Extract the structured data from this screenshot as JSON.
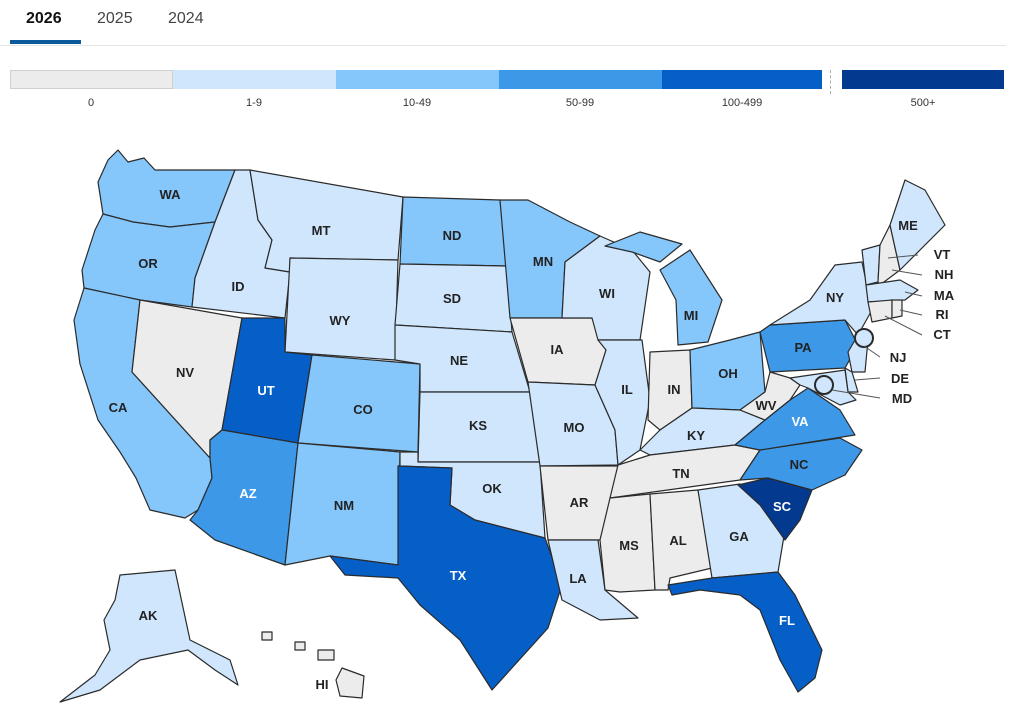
{
  "tabs": [
    {
      "label": "2026",
      "active": true
    },
    {
      "label": "2025",
      "active": false
    },
    {
      "label": "2024",
      "active": false
    }
  ],
  "legend": [
    {
      "label": "0",
      "color": "#ececec"
    },
    {
      "label": "1-9",
      "color": "#cfe6fd"
    },
    {
      "label": "10-49",
      "color": "#85c6fb"
    },
    {
      "label": "50-99",
      "color": "#3d98e8"
    },
    {
      "label": "100-499",
      "color": "#065fc6"
    },
    {
      "label": "500+",
      "color": "#03398f"
    }
  ],
  "states": [
    {
      "abbr": "WA",
      "category": "10-49"
    },
    {
      "abbr": "OR",
      "category": "10-49"
    },
    {
      "abbr": "CA",
      "category": "10-49"
    },
    {
      "abbr": "ID",
      "category": "1-9"
    },
    {
      "abbr": "NV",
      "category": "0"
    },
    {
      "abbr": "MT",
      "category": "1-9"
    },
    {
      "abbr": "WY",
      "category": "1-9"
    },
    {
      "abbr": "UT",
      "category": "100-499"
    },
    {
      "abbr": "AZ",
      "category": "50-99"
    },
    {
      "abbr": "CO",
      "category": "10-49"
    },
    {
      "abbr": "NM",
      "category": "10-49"
    },
    {
      "abbr": "ND",
      "category": "10-49"
    },
    {
      "abbr": "SD",
      "category": "1-9"
    },
    {
      "abbr": "NE",
      "category": "1-9"
    },
    {
      "abbr": "KS",
      "category": "1-9"
    },
    {
      "abbr": "OK",
      "category": "1-9"
    },
    {
      "abbr": "TX",
      "category": "100-499"
    },
    {
      "abbr": "MN",
      "category": "10-49"
    },
    {
      "abbr": "IA",
      "category": "0"
    },
    {
      "abbr": "MO",
      "category": "1-9"
    },
    {
      "abbr": "AR",
      "category": "0"
    },
    {
      "abbr": "LA",
      "category": "1-9"
    },
    {
      "abbr": "WI",
      "category": "1-9"
    },
    {
      "abbr": "IL",
      "category": "1-9"
    },
    {
      "abbr": "MI",
      "category": "10-49"
    },
    {
      "abbr": "IN",
      "category": "0"
    },
    {
      "abbr": "OH",
      "category": "10-49"
    },
    {
      "abbr": "KY",
      "category": "1-9"
    },
    {
      "abbr": "TN",
      "category": "0"
    },
    {
      "abbr": "MS",
      "category": "0"
    },
    {
      "abbr": "AL",
      "category": "0"
    },
    {
      "abbr": "GA",
      "category": "1-9"
    },
    {
      "abbr": "FL",
      "category": "100-499"
    },
    {
      "abbr": "SC",
      "category": "500+"
    },
    {
      "abbr": "NC",
      "category": "50-99"
    },
    {
      "abbr": "VA",
      "category": "50-99"
    },
    {
      "abbr": "WV",
      "category": "0"
    },
    {
      "abbr": "PA",
      "category": "50-99"
    },
    {
      "abbr": "NY",
      "category": "1-9"
    },
    {
      "abbr": "ME",
      "category": "1-9"
    },
    {
      "abbr": "VT",
      "category": "1-9"
    },
    {
      "abbr": "NH",
      "category": "0"
    },
    {
      "abbr": "MA",
      "category": "1-9"
    },
    {
      "abbr": "RI",
      "category": "0"
    },
    {
      "abbr": "CT",
      "category": "0"
    },
    {
      "abbr": "NJ",
      "category": "1-9"
    },
    {
      "abbr": "DE",
      "category": "1-9"
    },
    {
      "abbr": "MD",
      "category": "1-9"
    },
    {
      "abbr": "AK",
      "category": "1-9"
    },
    {
      "abbr": "HI",
      "category": "0"
    }
  ]
}
